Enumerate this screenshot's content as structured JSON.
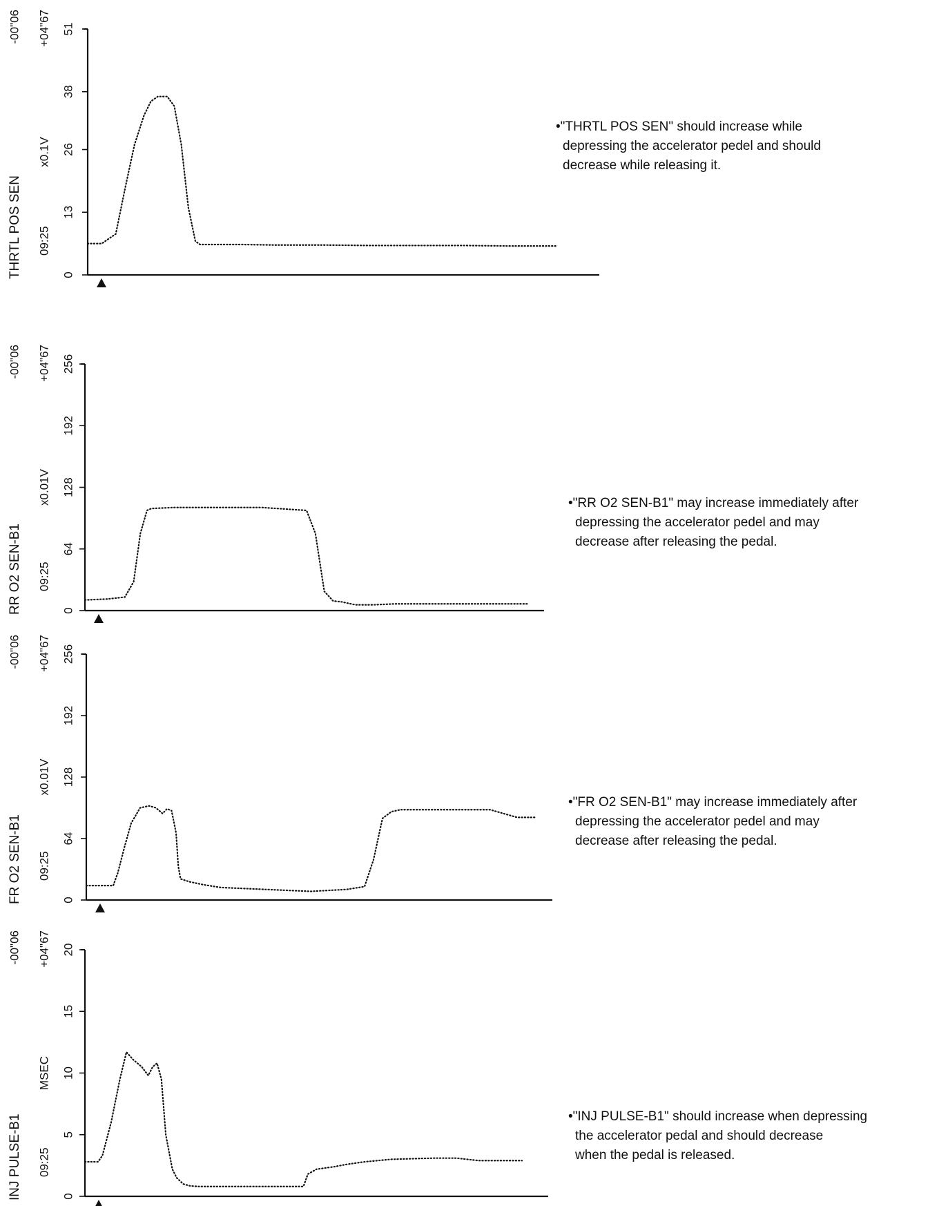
{
  "chart_data": [
    {
      "type": "line",
      "title": "THRTL POS SEN",
      "ylabel": "THRTL POS SEN",
      "unit": "x0.1V",
      "time_top": "-00\"06",
      "time_mid": "+04\"67",
      "clock": "09:25",
      "ylim": [
        0,
        51
      ],
      "yticks": [
        0,
        13,
        26,
        38,
        51
      ],
      "grid": false,
      "style": "dotted",
      "x": [
        0,
        3,
        6,
        8,
        10,
        12,
        13.5,
        15,
        17,
        18.5,
        20,
        21.5,
        23,
        24,
        26,
        28,
        30,
        33,
        40,
        50,
        60,
        70,
        80,
        90,
        100
      ],
      "values": [
        6.5,
        6.5,
        8.5,
        18,
        27,
        33,
        36,
        37,
        37,
        35,
        27,
        14,
        7,
        6.3,
        6.3,
        6.3,
        6.3,
        6.3,
        6.2,
        6.2,
        6.1,
        6.1,
        6.1,
        6.0,
        6.0
      ],
      "note": [
        "•\"THRTL POS SEN\" should increase while",
        "depressing the accelerator pedel and should",
        "decrease while releasing it."
      ]
    },
    {
      "type": "line",
      "title": "RR O2 SEN-B1",
      "ylabel": "RR O2 SEN-B1",
      "unit": "x0.01V",
      "time_top": "-00\"06",
      "time_mid": "+04\"67",
      "clock": "09:25",
      "ylim": [
        0,
        256
      ],
      "yticks": [
        0,
        64,
        128,
        192,
        256
      ],
      "grid": false,
      "style": "dotted",
      "x": [
        0,
        5,
        9,
        11,
        12.5,
        14,
        15,
        20,
        30,
        40,
        50,
        52,
        54,
        56,
        58,
        61,
        65,
        70,
        80,
        90,
        100
      ],
      "values": [
        11,
        12,
        14,
        30,
        80,
        104,
        106,
        107,
        107,
        107,
        104,
        80,
        20,
        10,
        9,
        6,
        6,
        7,
        7,
        7,
        7
      ],
      "note": [
        "•\"RR O2 SEN-B1\" may increase immediately after",
        "depressing the accelerator pedel and may",
        "decrease after releasing the pedal."
      ]
    },
    {
      "type": "line",
      "title": "FR O2 SEN-B1",
      "ylabel": "FR O2 SEN-B1",
      "unit": "x0.01V",
      "time_top": "-00\"06",
      "time_mid": "+04\"67",
      "clock": "09:25",
      "ylim": [
        0,
        256
      ],
      "yticks": [
        0,
        64,
        128,
        192,
        256
      ],
      "grid": false,
      "style": "dotted",
      "x": [
        0,
        6,
        7,
        8.5,
        10,
        12,
        14,
        15.5,
        17,
        18,
        19,
        20,
        20.5,
        21,
        23,
        26,
        30,
        40,
        50,
        58,
        62,
        64,
        66,
        68,
        70,
        75,
        85,
        90,
        93,
        96,
        100
      ],
      "values": [
        15,
        15,
        28,
        55,
        80,
        96,
        98,
        96,
        90,
        95,
        93,
        70,
        35,
        22,
        19,
        16,
        13,
        11,
        9,
        11,
        14,
        42,
        85,
        92,
        94,
        94,
        94,
        94,
        90,
        86,
        86
      ],
      "note": [
        "•\"FR O2 SEN-B1\" may increase immediately after",
        "depressing the accelerator pedel and may",
        "decrease after releasing the pedal."
      ]
    },
    {
      "type": "line",
      "title": "INJ PULSE-B1",
      "ylabel": "INJ PULSE-B1",
      "unit": "MSEC",
      "time_top": "-00\"06",
      "time_mid": "+04\"67",
      "clock": "09:25",
      "ylim": [
        0,
        20
      ],
      "yticks": [
        0,
        5,
        10,
        15,
        20
      ],
      "grid": false,
      "style": "dotted",
      "x": [
        0,
        3,
        4,
        6,
        8,
        9.5,
        11,
        13,
        14.5,
        15.5,
        16.5,
        17.5,
        18.5,
        20,
        21,
        22.5,
        24,
        26,
        30,
        40,
        50,
        51,
        53,
        57,
        60,
        64,
        70,
        80,
        85,
        90,
        100
      ],
      "values": [
        2.8,
        2.8,
        3.3,
        6,
        9.5,
        11.7,
        11.1,
        10.5,
        9.8,
        10.5,
        10.8,
        9.5,
        5,
        2.2,
        1.5,
        1.0,
        0.85,
        0.8,
        0.8,
        0.8,
        0.8,
        1.8,
        2.2,
        2.4,
        2.6,
        2.8,
        3.0,
        3.1,
        3.1,
        2.9,
        2.9
      ],
      "note": [
        "•\"INJ PULSE-B1\" should increase when depressing",
        "the accelerator pedal and should decrease",
        "when the pedal is released."
      ]
    }
  ]
}
